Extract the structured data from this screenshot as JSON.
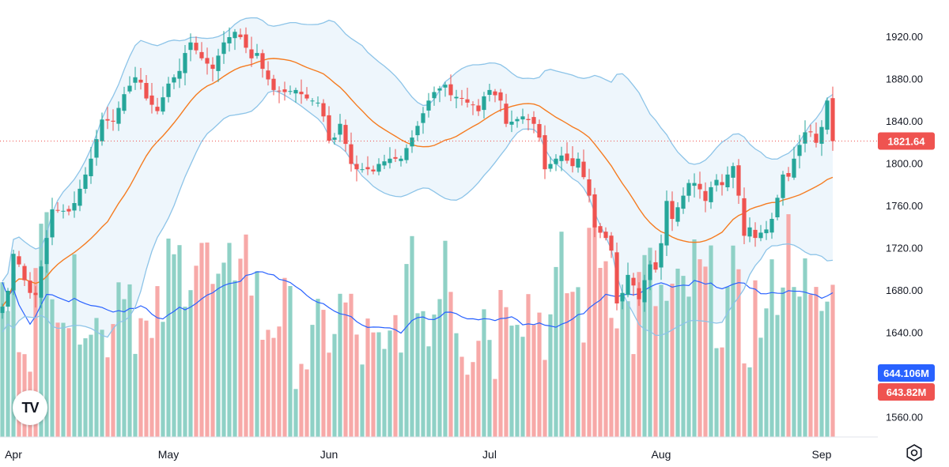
{
  "chart_data": {
    "type": "candlestick",
    "price_axis": {
      "ticks": [
        "1920.00",
        "1880.00",
        "1840.00",
        "1800.00",
        "1760.00",
        "1720.00",
        "1680.00",
        "1640.00",
        "1560.00"
      ],
      "tick_values": [
        1920,
        1880,
        1840,
        1800,
        1760,
        1720,
        1680,
        1640,
        1560
      ],
      "range": [
        1550,
        1950
      ]
    },
    "time_axis": {
      "ticks": [
        "Apr",
        "May",
        "Jun",
        "Jul",
        "Aug",
        "Sep"
      ],
      "tick_bar_index": [
        2,
        30,
        59,
        88,
        119,
        148
      ]
    },
    "last_price": {
      "value": 1821.64,
      "label": "1821.64"
    },
    "volume_labels": {
      "ma_label": "644.106M",
      "last_label": "643.82M"
    },
    "colors": {
      "up": "#26a69a",
      "down": "#ef5350",
      "up_volume": "#8fd1c6",
      "down_volume": "#f7a9a8",
      "bb_band": "#8dc4e8",
      "bb_fill": "#eef6fc",
      "sma": "#f57c21",
      "volume_ma": "#2962ff",
      "price_line": "#ef5350"
    },
    "anchor_closes": [
      [
        0,
        1665
      ],
      [
        1,
        1680
      ],
      [
        2,
        1715
      ],
      [
        3,
        1705
      ],
      [
        4,
        1690
      ],
      [
        5,
        1678
      ],
      [
        6,
        1676
      ],
      [
        9,
        1757
      ],
      [
        12,
        1755
      ],
      [
        13,
        1763
      ],
      [
        15,
        1790
      ],
      [
        16,
        1805
      ],
      [
        18,
        1842
      ],
      [
        20,
        1840
      ],
      [
        22,
        1866
      ],
      [
        24,
        1882
      ],
      [
        25,
        1877
      ],
      [
        26,
        1862
      ],
      [
        28,
        1850
      ],
      [
        30,
        1876
      ],
      [
        32,
        1888
      ],
      [
        33,
        1905
      ],
      [
        34,
        1915
      ],
      [
        36,
        1900
      ],
      [
        38,
        1890
      ],
      [
        40,
        1915
      ],
      [
        42,
        1925
      ],
      [
        43,
        1920
      ],
      [
        45,
        1900
      ],
      [
        46,
        1905
      ],
      [
        47,
        1890
      ],
      [
        48,
        1880
      ],
      [
        49,
        1870
      ],
      [
        51,
        1868
      ],
      [
        53,
        1870
      ],
      [
        55,
        1862
      ],
      [
        57,
        1858
      ],
      [
        58,
        1845
      ],
      [
        59,
        1822
      ],
      [
        60,
        1825
      ],
      [
        61,
        1838
      ],
      [
        63,
        1800
      ],
      [
        64,
        1795
      ],
      [
        66,
        1795
      ],
      [
        67,
        1793
      ],
      [
        68,
        1800
      ],
      [
        70,
        1805
      ],
      [
        72,
        1805
      ],
      [
        74,
        1825
      ],
      [
        75,
        1836
      ],
      [
        77,
        1860
      ],
      [
        78,
        1868
      ],
      [
        80,
        1875
      ],
      [
        81,
        1865
      ],
      [
        83,
        1862
      ],
      [
        84,
        1858
      ],
      [
        85,
        1856
      ],
      [
        86,
        1850
      ],
      [
        87,
        1864
      ],
      [
        88,
        1870
      ],
      [
        90,
        1860
      ],
      [
        91,
        1838
      ],
      [
        92,
        1840
      ],
      [
        94,
        1845
      ],
      [
        96,
        1838
      ],
      [
        97,
        1825
      ],
      [
        98,
        1795
      ],
      [
        100,
        1805
      ],
      [
        101,
        1808
      ],
      [
        103,
        1798
      ],
      [
        104,
        1805
      ],
      [
        106,
        1770
      ],
      [
        107,
        1740
      ],
      [
        109,
        1730
      ],
      [
        110,
        1718
      ],
      [
        111,
        1668
      ],
      [
        112,
        1678
      ],
      [
        113,
        1695
      ],
      [
        114,
        1685
      ],
      [
        115,
        1672
      ],
      [
        116,
        1690
      ],
      [
        117,
        1705
      ],
      [
        118,
        1700
      ],
      [
        119,
        1725
      ],
      [
        120,
        1765
      ],
      [
        121,
        1748
      ],
      [
        123,
        1770
      ],
      [
        124,
        1782
      ],
      [
        125,
        1782
      ],
      [
        126,
        1776
      ],
      [
        127,
        1765
      ],
      [
        128,
        1778
      ],
      [
        129,
        1785
      ],
      [
        130,
        1780
      ],
      [
        131,
        1790
      ],
      [
        132,
        1798
      ],
      [
        133,
        1770
      ],
      [
        134,
        1732
      ],
      [
        135,
        1740
      ],
      [
        136,
        1730
      ],
      [
        137,
        1735
      ],
      [
        138,
        1738
      ],
      [
        139,
        1748
      ],
      [
        140,
        1768
      ],
      [
        141,
        1790
      ],
      [
        142,
        1788
      ],
      [
        143,
        1805
      ],
      [
        144,
        1818
      ],
      [
        145,
        1830
      ],
      [
        146,
        1830
      ],
      [
        147,
        1820
      ],
      [
        148,
        1835
      ],
      [
        149,
        1860
      ],
      [
        150,
        1821.64
      ]
    ],
    "anchor_volumes": [
      [
        0,
        648
      ],
      [
        5,
        630
      ],
      [
        8,
        690
      ],
      [
        10,
        660
      ],
      [
        12,
        640
      ],
      [
        15,
        650
      ],
      [
        18,
        620
      ],
      [
        22,
        670
      ],
      [
        24,
        640
      ],
      [
        27,
        610
      ],
      [
        30,
        660
      ],
      [
        33,
        670
      ],
      [
        36,
        680
      ],
      [
        38,
        650
      ],
      [
        40,
        640
      ],
      [
        43,
        690
      ],
      [
        45,
        660
      ],
      [
        47,
        630
      ],
      [
        50,
        640
      ],
      [
        53,
        620
      ],
      [
        56,
        610
      ],
      [
        59,
        630
      ],
      [
        62,
        640
      ],
      [
        64,
        620
      ],
      [
        66,
        615
      ],
      [
        69,
        600
      ],
      [
        71,
        630
      ],
      [
        73,
        650
      ],
      [
        75,
        660
      ],
      [
        77,
        620
      ],
      [
        80,
        690
      ],
      [
        82,
        640
      ],
      [
        84,
        620
      ],
      [
        87,
        640
      ],
      [
        89,
        620
      ],
      [
        91,
        660
      ],
      [
        93,
        650
      ],
      [
        96,
        640
      ],
      [
        99,
        630
      ],
      [
        101,
        660
      ],
      [
        103,
        650
      ],
      [
        105,
        640
      ],
      [
        107,
        690
      ],
      [
        110,
        660
      ],
      [
        112,
        640
      ],
      [
        114,
        630
      ],
      [
        116,
        660
      ],
      [
        118,
        650
      ],
      [
        120,
        640
      ],
      [
        122,
        640
      ],
      [
        125,
        660
      ],
      [
        128,
        650
      ],
      [
        130,
        640
      ],
      [
        132,
        650
      ],
      [
        134,
        620
      ],
      [
        136,
        640
      ],
      [
        138,
        630
      ],
      [
        140,
        660
      ],
      [
        142,
        680
      ],
      [
        144,
        670
      ],
      [
        146,
        630
      ],
      [
        148,
        640
      ],
      [
        150,
        643.82
      ]
    ]
  }
}
